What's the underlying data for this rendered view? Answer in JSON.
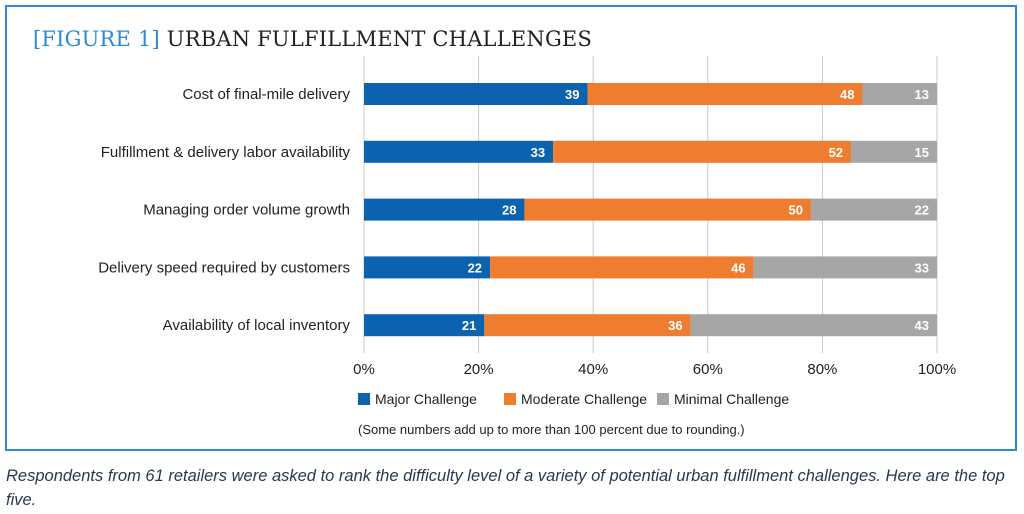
{
  "title_prefix": "[FIGURE 1]",
  "title_main": "URBAN FULFILLMENT CHALLENGES",
  "note": "(Some numbers add up to more than 100 percent due to rounding.)",
  "caption": "Respondents from 61 retailers were asked to rank the difficulty level of a variety of potential urban fulfillment challenges. Here are the top five.",
  "colors": {
    "major": "#0b63b0",
    "moderate": "#ef7d2f",
    "minimal": "#a6a6a6",
    "frame": "#2d8bd3"
  },
  "chart_data": {
    "type": "bar",
    "orientation": "horizontal",
    "stacked": true,
    "title": "[FIGURE 1] URBAN FULFILLMENT CHALLENGES",
    "categories": [
      "Cost of final-mile delivery",
      "Fulfillment & delivery labor availability",
      "Managing order volume growth",
      "Delivery speed required by customers",
      "Availability of local inventory"
    ],
    "series": [
      {
        "name": "Major Challenge",
        "values": [
          39,
          33,
          28,
          22,
          21
        ]
      },
      {
        "name": "Moderate Challenge",
        "values": [
          48,
          52,
          50,
          46,
          36
        ]
      },
      {
        "name": "Minimal Challenge",
        "values": [
          13,
          15,
          22,
          33,
          43
        ]
      }
    ],
    "xlim": [
      0,
      100
    ],
    "xticks": [
      "0%",
      "20%",
      "40%",
      "60%",
      "80%",
      "100%"
    ],
    "grid": true,
    "legend": "bottom"
  }
}
